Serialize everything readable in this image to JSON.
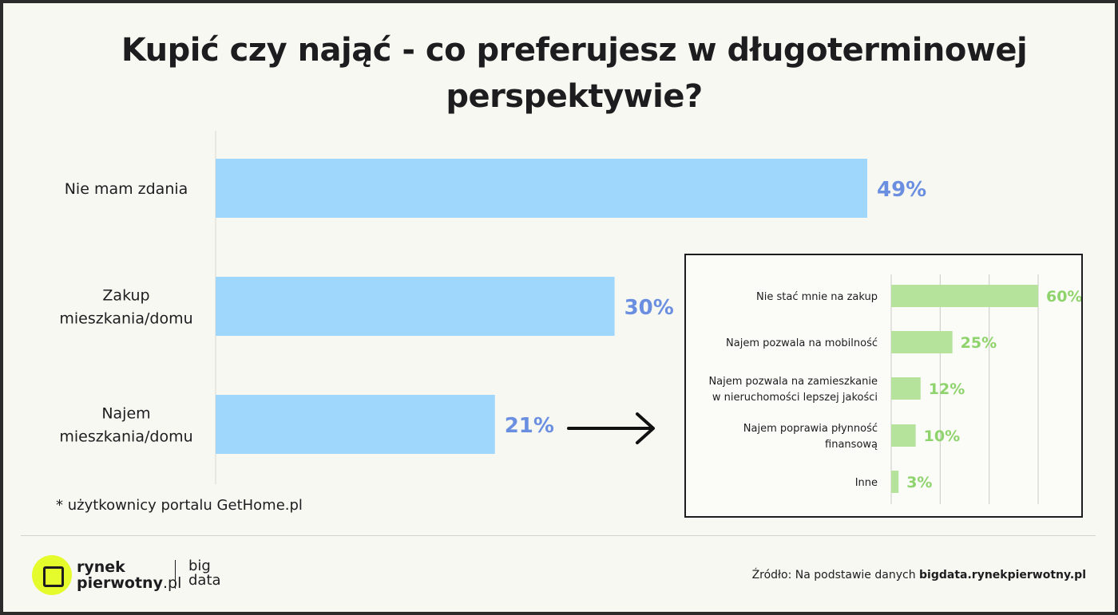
{
  "title_lines": [
    "Kupić czy nająć - co preferujesz w długoterminowej",
    "perspektywie?"
  ],
  "colors": {
    "main_bar": "#9fd6fb",
    "main_label": "#6b8fe0",
    "inset_bar": "#b6e39b",
    "inset_label": "#8fd36c"
  },
  "chart_data": [
    {
      "type": "bar",
      "orientation": "horizontal",
      "categories": [
        [
          "Nie mam zdania"
        ],
        [
          "Zakup",
          "mieszkania/domu"
        ],
        [
          "Najem",
          "mieszkania/domu"
        ]
      ],
      "values": [
        49,
        30,
        21
      ],
      "value_labels": [
        "49%",
        "30%",
        "21%"
      ],
      "xlim": [
        0,
        50
      ],
      "grid": false
    },
    {
      "type": "bar",
      "orientation": "horizontal",
      "categories": [
        [
          "Nie stać mnie na zakup"
        ],
        [
          "Najem pozwala na mobilność"
        ],
        [
          "Najem pozwala na zamieszkanie",
          "w nieruchomości lepszej jakości"
        ],
        [
          "Najem poprawia płynność",
          "finansową"
        ],
        [
          "Inne"
        ]
      ],
      "values": [
        60,
        25,
        12,
        10,
        3
      ],
      "value_labels": [
        "60%",
        "25%",
        "12%",
        "10%",
        "3%"
      ],
      "xlim": [
        0,
        60
      ],
      "grid": true
    }
  ],
  "footnote": "* użytkownicy portalu GetHome.pl",
  "logo": {
    "line1": "rynek",
    "line2a": "pierwotny",
    "line2b": ".pl",
    "big": "big",
    "data": "data"
  },
  "source": {
    "prefix": "Źródło: Na podstawie danych ",
    "bold": "bigdata.rynekpierwotny.pl"
  }
}
